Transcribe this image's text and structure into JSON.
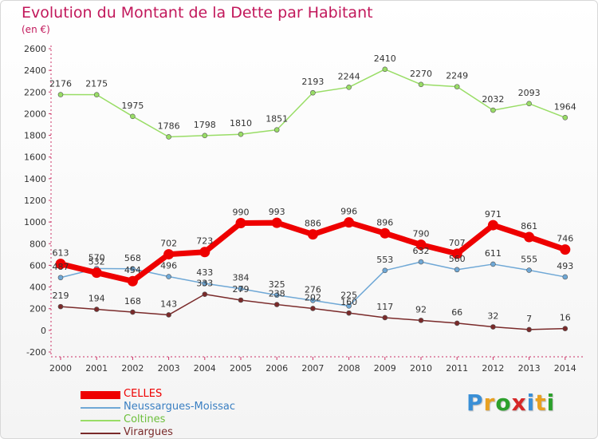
{
  "title": "Evolution du Montant de la Dette par Habitant",
  "subtitle": "(en €)",
  "logo": {
    "text": "Proxiti",
    "letter_colors": [
      "#3a8fd6",
      "#e8a020",
      "#2ca02c",
      "#d62728",
      "#3a8fd6",
      "#e8a020",
      "#2ca02c"
    ]
  },
  "chart_data": {
    "type": "line",
    "title": "Evolution du Montant de la Dette par Habitant",
    "subtitle": "(en €)",
    "xlabel": "",
    "ylabel": "",
    "x": [
      "2000",
      "2001",
      "2002",
      "2003",
      "2004",
      "2005",
      "2006",
      "2007",
      "2008",
      "2009",
      "2010",
      "2011",
      "2012",
      "2013",
      "2014"
    ],
    "ylim": [
      -200,
      2600
    ],
    "yticks": [
      -200,
      0,
      200,
      400,
      600,
      800,
      1000,
      1200,
      1400,
      1600,
      1800,
      2000,
      2200,
      2400,
      2600
    ],
    "grid": false,
    "legend_position": "bottom-left",
    "series": [
      {
        "name": "Coltines",
        "color": "#99dd66",
        "values": [
          2176,
          2175,
          1975,
          1786,
          1798,
          1810,
          1851,
          2193,
          2244,
          2410,
          2270,
          2249,
          2032,
          2093,
          1964
        ]
      },
      {
        "name": "Neussargues-Moissac",
        "color": "#6fa8d6",
        "values": [
          487,
          570,
          568,
          496,
          433,
          384,
          325,
          276,
          225,
          553,
          632,
          560,
          611,
          555,
          493
        ]
      },
      {
        "name": "Virargues",
        "color": "#7a2a2a",
        "values": [
          219,
          194,
          168,
          143,
          333,
          279,
          238,
          202,
          160,
          117,
          92,
          66,
          32,
          7,
          16
        ]
      },
      {
        "name": "CELLES",
        "color": "#ee0000",
        "values": [
          613,
          532,
          454,
          702,
          723,
          990,
          993,
          886,
          996,
          896,
          790,
          707,
          971,
          861,
          746
        ]
      }
    ],
    "data_labels": {
      "Coltines": [
        "2176",
        "2175",
        "1975",
        "1786",
        "1798",
        "1810",
        "1851",
        "2193",
        "2244",
        "2410",
        "2270",
        "2249",
        "2032",
        "2093",
        "1964"
      ],
      "Neussargues-Moissac": [
        "487",
        "570",
        "568",
        "496",
        "433",
        "384",
        "325",
        "276",
        "225",
        "553",
        "632",
        "560",
        "611",
        "555",
        "493"
      ],
      "Virargues": [
        "219",
        "194",
        "168",
        "143",
        "333",
        "279",
        "238",
        "202",
        "160",
        "117",
        "92",
        "66",
        "32",
        "7",
        "16"
      ],
      "CELLES": [
        "613",
        "532",
        "454",
        "702",
        "723",
        "990",
        "993",
        "886",
        "996",
        "896",
        "790",
        "707",
        "971",
        "861",
        "746"
      ]
    }
  },
  "legend": [
    {
      "label": "CELLES",
      "color": "#ee0000"
    },
    {
      "label": "Neussargues-Moissac",
      "color": "#6fa8d6"
    },
    {
      "label": "Coltines",
      "color": "#99dd66"
    },
    {
      "label": "Virargues",
      "color": "#7a2a2a"
    }
  ]
}
